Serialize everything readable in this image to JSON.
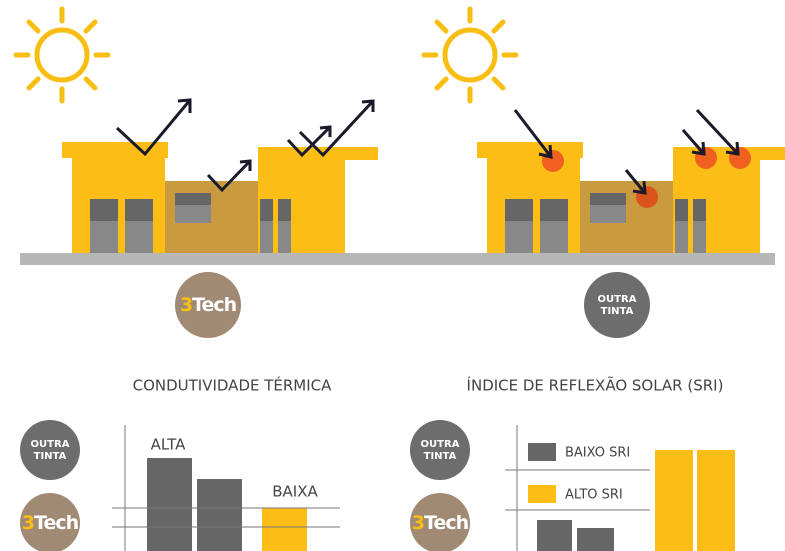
{
  "logo": {
    "digit": "3",
    "word": "Tech"
  },
  "other_paint": {
    "line1": "OUTRA",
    "line2": "TINTA"
  },
  "thermal": {
    "title": "CONDUTIVIDADE TÉRMICA",
    "high": "ALTA",
    "low": "BAIXA"
  },
  "sri": {
    "title": "ÍNDICE DE REFLEXÃO SOLAR (SRI)",
    "low": "BAIXO SRI",
    "high": "ALTO SRI"
  }
}
